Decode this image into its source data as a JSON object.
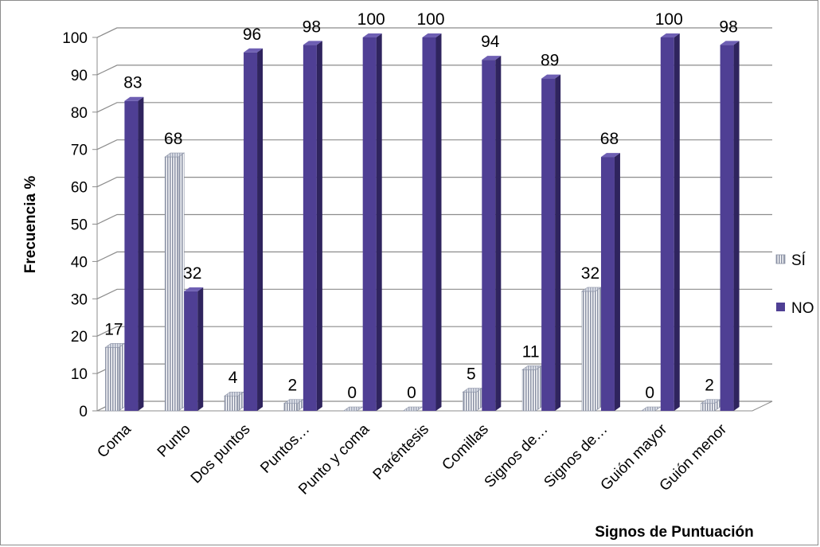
{
  "chart_data": {
    "type": "bar",
    "xlabel": "Signos de Puntuación",
    "ylabel": "Frecuencia %",
    "ylim": [
      0,
      100
    ],
    "yticks": [
      0,
      10,
      20,
      30,
      40,
      50,
      60,
      70,
      80,
      90,
      100
    ],
    "grid": true,
    "legend_position": "right",
    "categories": [
      "Coma",
      "Punto",
      "Dos puntos",
      "Puntos…",
      "Punto y coma",
      "Paréntesis",
      "Comillas",
      "Signos de…",
      "Signos de…",
      "Guión mayor",
      "Guión menor"
    ],
    "series": [
      {
        "name": "SÍ",
        "color": "#9aa3b8",
        "pattern": "vertical-stripes",
        "values": [
          17,
          68,
          4,
          2,
          0,
          0,
          5,
          11,
          32,
          0,
          2
        ]
      },
      {
        "name": "NO",
        "color": "#4f3f94",
        "values": [
          83,
          32,
          96,
          98,
          100,
          100,
          94,
          89,
          68,
          100,
          98
        ]
      }
    ]
  }
}
